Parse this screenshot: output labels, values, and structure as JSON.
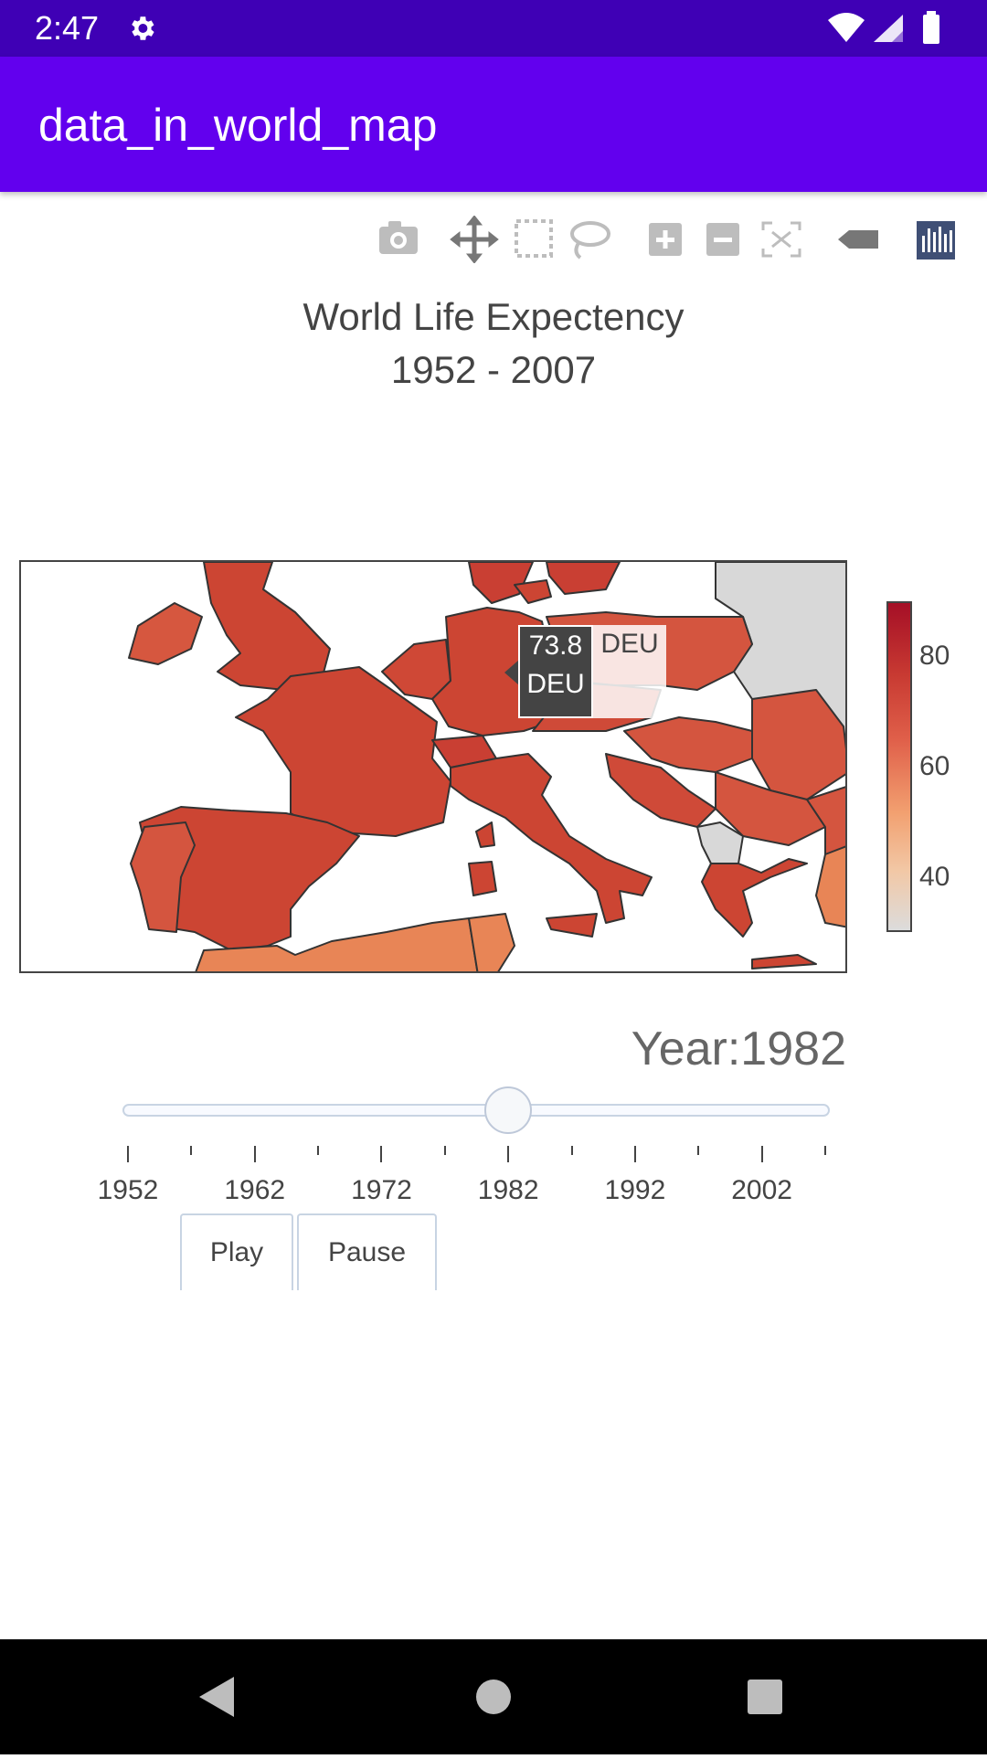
{
  "status_bar": {
    "time": "2:47"
  },
  "app_bar": {
    "title": "data_in_world_map"
  },
  "modebar": {
    "icons": [
      "camera-icon",
      "pan-icon",
      "box-select-icon",
      "lasso-icon",
      "zoom-in-icon",
      "zoom-out-icon",
      "autoscale-icon",
      "hover-tag-icon",
      "plotly-logo-icon"
    ]
  },
  "chart_data": {
    "type": "choropleth",
    "title_line1": "World Life Expectency",
    "title_line2": "1952 - 2007",
    "colorscale": [
      "#dcdcdc",
      "#f2c8a6",
      "#f2a070",
      "#e0604a",
      "#c83a32",
      "#a50f26"
    ],
    "colorbar_ticks": [
      "80",
      "60",
      "40"
    ],
    "colorbar_range": [
      30,
      90
    ],
    "hover": {
      "value": "73.8",
      "code": "DEU",
      "name": "DEU"
    }
  },
  "slider": {
    "current_label": "Year:1982",
    "current_value": 1982,
    "range": [
      1952,
      2007
    ],
    "tick_labels": [
      "1952",
      "1962",
      "1972",
      "1982",
      "1992",
      "2002"
    ]
  },
  "buttons": {
    "play": "Play",
    "pause": "Pause"
  },
  "colors": {
    "status_bar": "#3f00b5",
    "app_bar": "#6200ee"
  }
}
